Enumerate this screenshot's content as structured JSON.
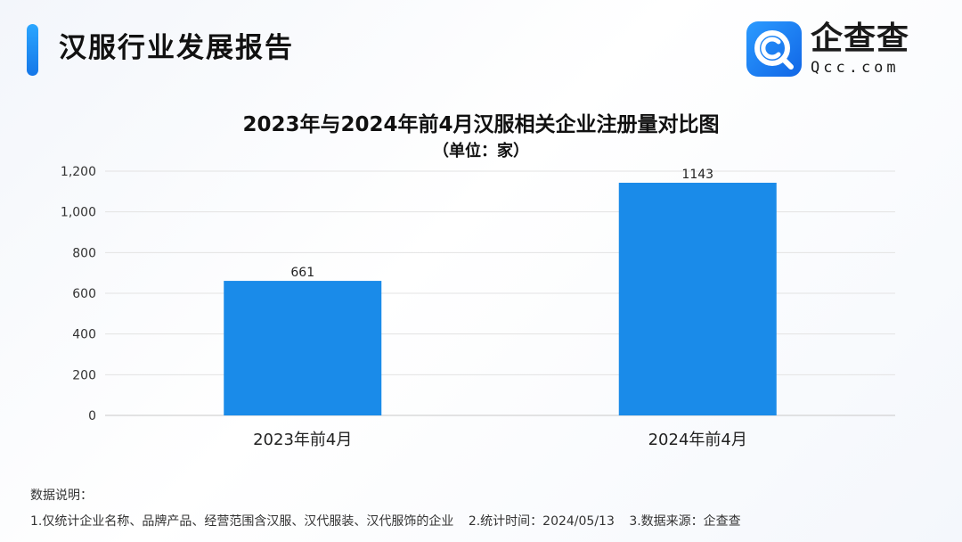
{
  "header": {
    "title": "汉服行业发展报告",
    "logo_name": "企查查",
    "logo_domain": "Qcc.com"
  },
  "colors": {
    "accent": "#1a8be9",
    "bar": "#1a8be9",
    "logo": "#1577e8"
  },
  "chart_data": {
    "type": "bar",
    "title": "2023年与2024年前4月汉服相关企业注册量对比图",
    "subtitle": "（单位：家）",
    "categories": [
      "2023年前4月",
      "2024年前4月"
    ],
    "values": [
      661,
      1143
    ],
    "data_labels": [
      "661",
      "1143"
    ],
    "y_ticks": [
      0,
      200,
      400,
      600,
      800,
      1000,
      1200
    ],
    "y_tick_labels": [
      "0",
      "200",
      "400",
      "600",
      "800",
      "1,000",
      "1,200"
    ],
    "ylim": [
      0,
      1200
    ],
    "grid": true,
    "legend": "none"
  },
  "notes": {
    "heading": "数据说明：",
    "items": [
      "1.仅统计企业名称、品牌产品、经营范围含汉服、汉代服装、汉代服饰的企业",
      "2.统计时间：2024/05/13",
      "3.数据来源：企查查"
    ]
  }
}
